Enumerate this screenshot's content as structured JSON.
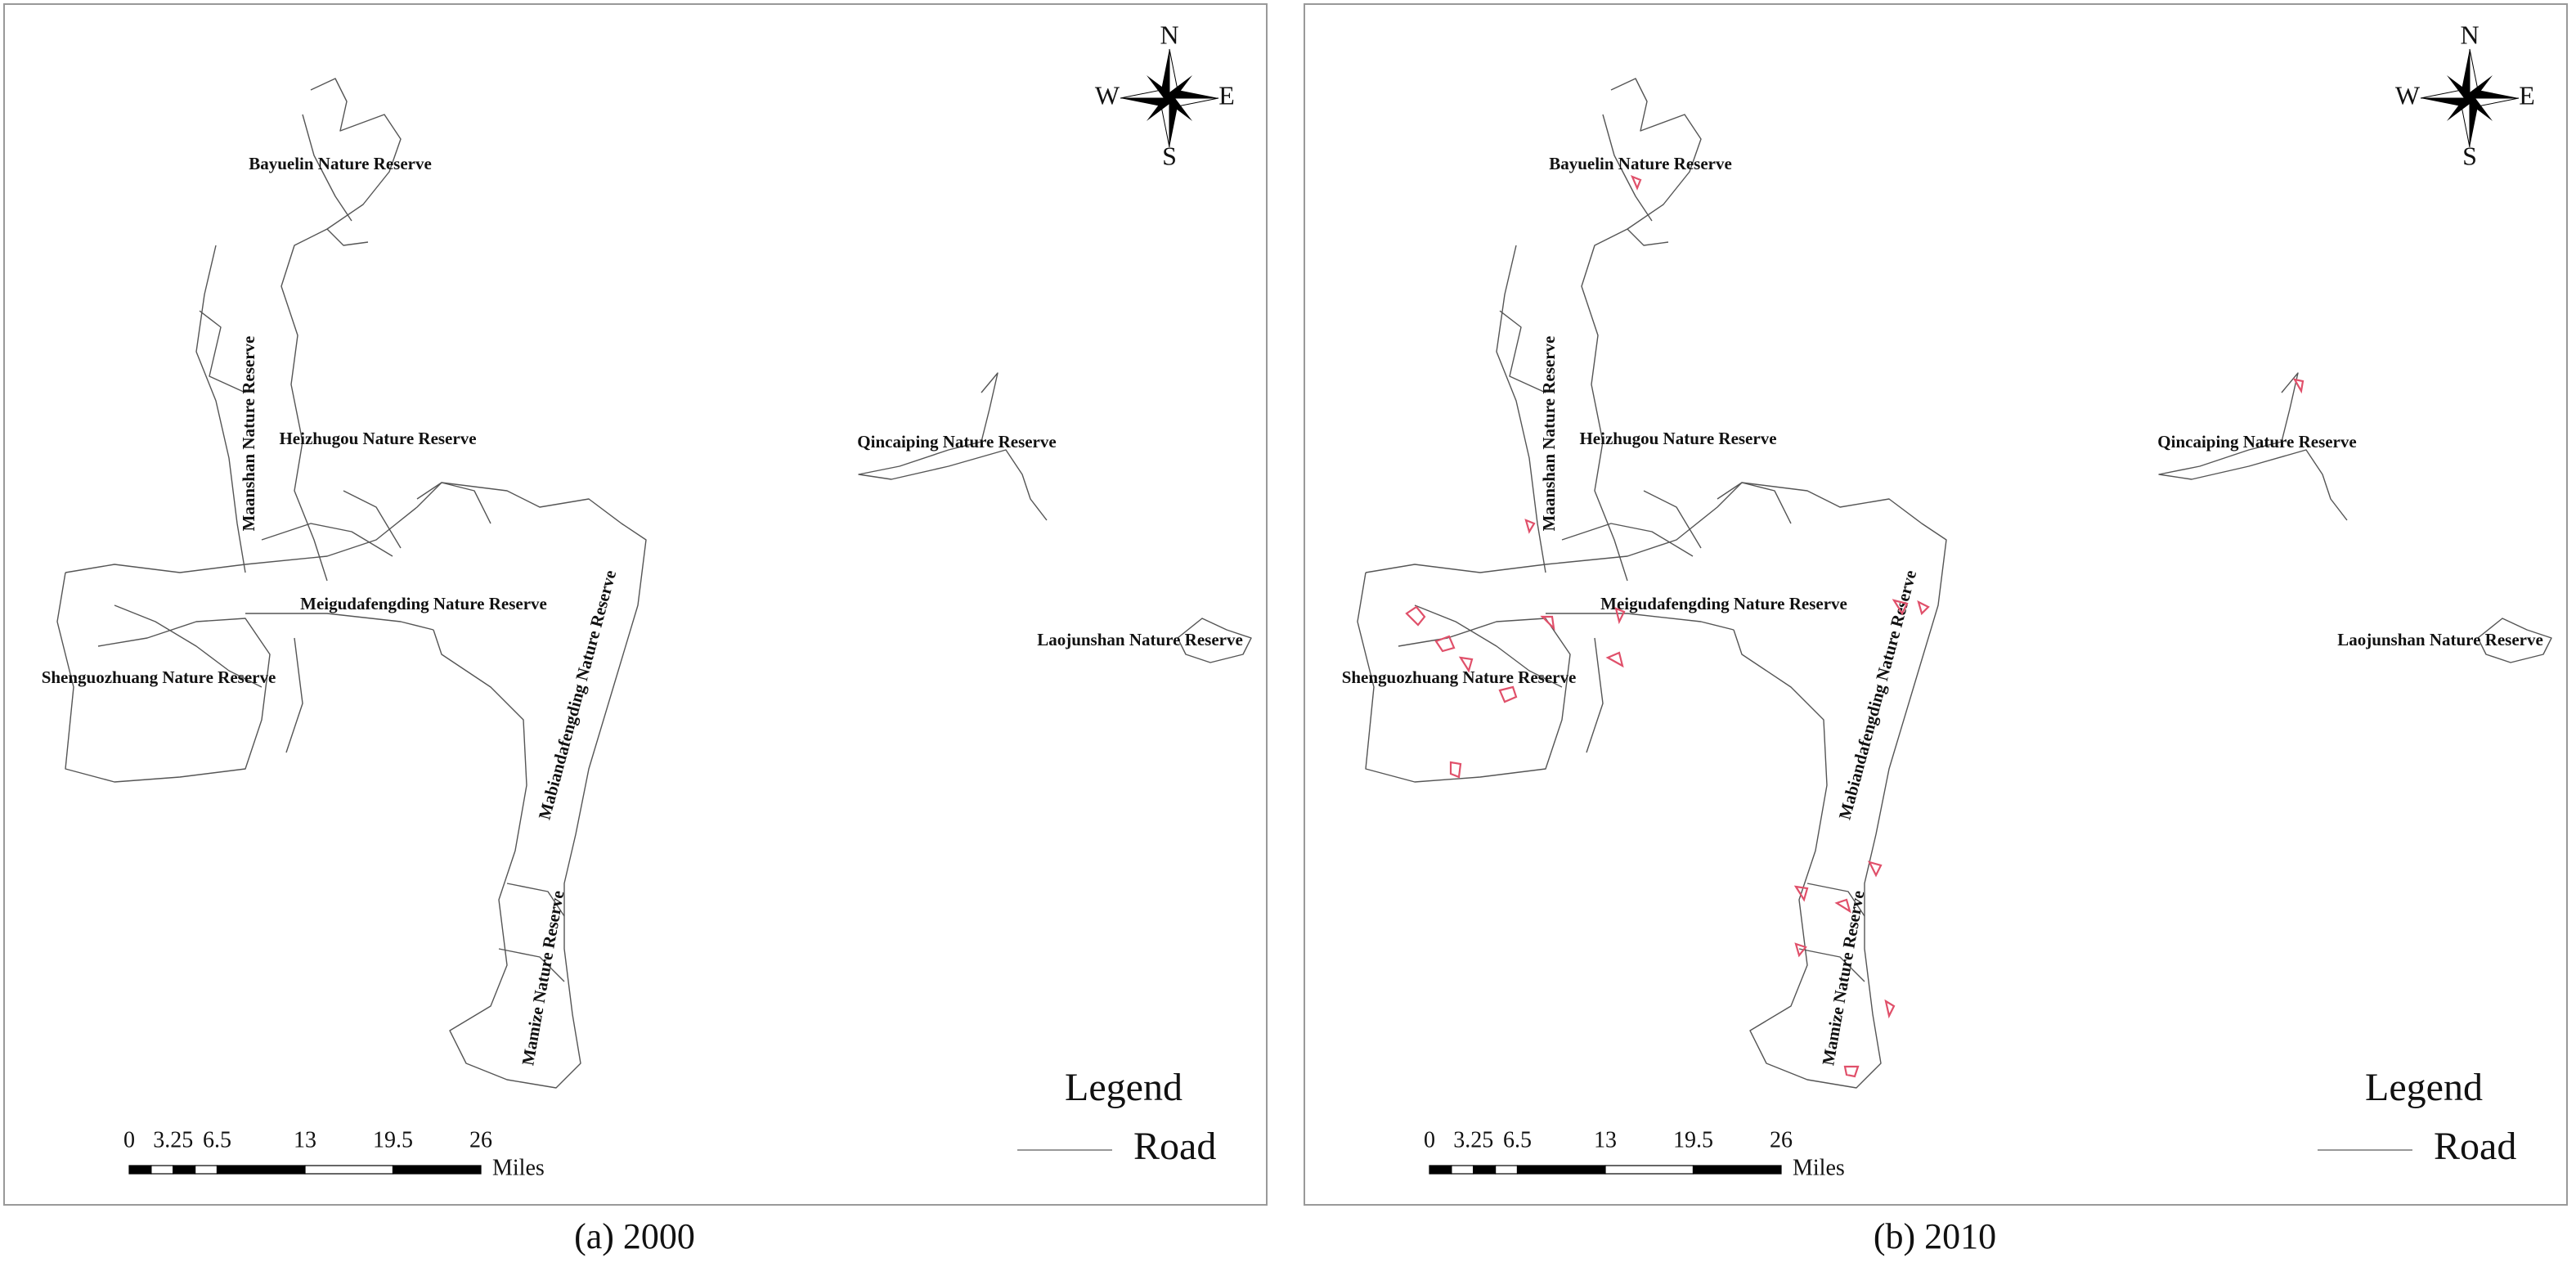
{
  "panels": [
    {
      "caption": "(a) 2000",
      "reserves": [
        "Bayuelin Nature Reserve",
        "Maanshan Nature Reserve",
        "Heizhugou Nature Reserve",
        "Qincaiping Nature Reserve",
        "Meigudafengding Nature Reserve",
        "Mabiandafengding Nature Reserve",
        "Shenguozhuang Nature Reserve",
        "Laojunshan Nature Reserve",
        "Mamize Nature Reserve"
      ],
      "compass": {
        "n": "N",
        "e": "E",
        "s": "S",
        "w": "W"
      },
      "scale": {
        "ticks": [
          0,
          3.25,
          6.5,
          13,
          19.5,
          26
        ],
        "unit": "Miles"
      },
      "legend": {
        "title": "Legend",
        "items": [
          "Road"
        ]
      }
    },
    {
      "caption": "(b) 2010",
      "reserves": [
        "Bayuelin Nature Reserve",
        "Maanshan Nature Reserve",
        "Heizhugou Nature Reserve",
        "Qincaiping Nature Reserve",
        "Meigudafengding Nature Reserve",
        "Mabiandafengding Nature Reserve",
        "Shenguozhuang Nature Reserve",
        "Laojunshan Nature Reserve",
        "Mamize Nature Reserve"
      ],
      "compass": {
        "n": "N",
        "e": "E",
        "s": "S",
        "w": "W"
      },
      "scale": {
        "ticks": [
          0,
          3.25,
          6.5,
          13,
          19.5,
          26
        ],
        "unit": "Miles"
      },
      "legend": {
        "title": "Legend",
        "items": [
          "Road"
        ]
      }
    }
  ]
}
